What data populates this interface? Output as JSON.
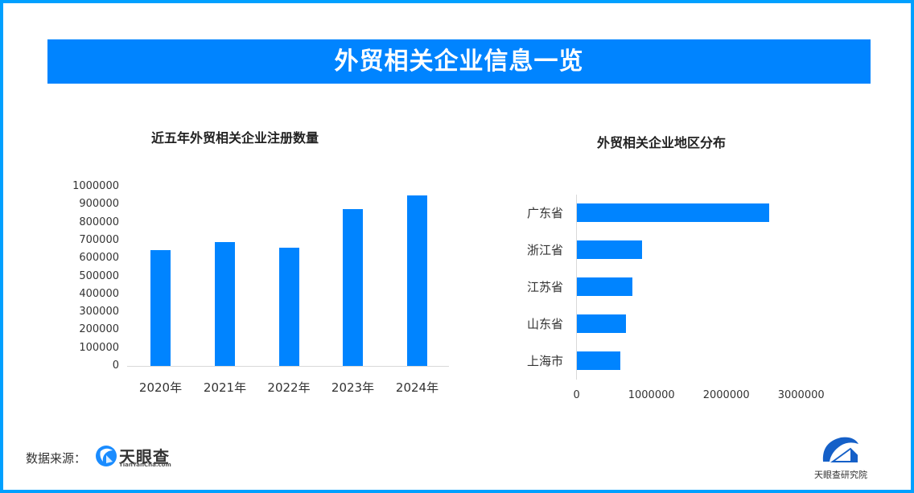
{
  "header": {
    "title": "外贸相关企业信息一览"
  },
  "colors": {
    "accent": "#0084FF",
    "border": "#00A0FF",
    "axis": "#D9D9D9"
  },
  "left_chart": {
    "title": "近五年外贸相关企业注册数量",
    "yticks": [
      "1000000",
      "900000",
      "800000",
      "700000",
      "600000",
      "500000",
      "400000",
      "300000",
      "200000",
      "100000",
      "0"
    ],
    "categories": [
      "2020年",
      "2021年",
      "2022年",
      "2023年",
      "2024年"
    ]
  },
  "right_chart": {
    "title": "外贸相关企业地区分布",
    "categories": [
      "广东省",
      "浙江省",
      "江苏省",
      "山东省",
      "上海市"
    ],
    "xticks": [
      "0",
      "1000000",
      "2000000",
      "3000000"
    ]
  },
  "footer": {
    "source_label": "数据来源：",
    "source_logo_name": "天眼查",
    "source_logo_sub": "TianYanCha.com",
    "institute_logo_name": "天眼查研究院"
  },
  "chart_data": [
    {
      "type": "bar",
      "title": "近五年外贸相关企业注册数量",
      "categories": [
        "2020年",
        "2021年",
        "2022年",
        "2023年",
        "2024年"
      ],
      "values": [
        646000,
        690000,
        659000,
        874000,
        951000
      ],
      "xlabel": "",
      "ylabel": "",
      "ylim": [
        0,
        1000000
      ],
      "yticks": [
        0,
        100000,
        200000,
        300000,
        400000,
        500000,
        600000,
        700000,
        800000,
        900000,
        1000000
      ],
      "grid": false,
      "legend": "none",
      "color": "#0084FF"
    },
    {
      "type": "bar",
      "orientation": "horizontal",
      "title": "外贸相关企业地区分布",
      "categories": [
        "广东省",
        "浙江省",
        "江苏省",
        "山东省",
        "上海市"
      ],
      "values": [
        2570000,
        870000,
        740000,
        660000,
        580000
      ],
      "xlabel": "",
      "ylabel": "",
      "xlim": [
        0,
        3000000
      ],
      "xticks": [
        0,
        1000000,
        2000000,
        3000000
      ],
      "grid": false,
      "legend": "none",
      "color": "#0084FF"
    }
  ]
}
